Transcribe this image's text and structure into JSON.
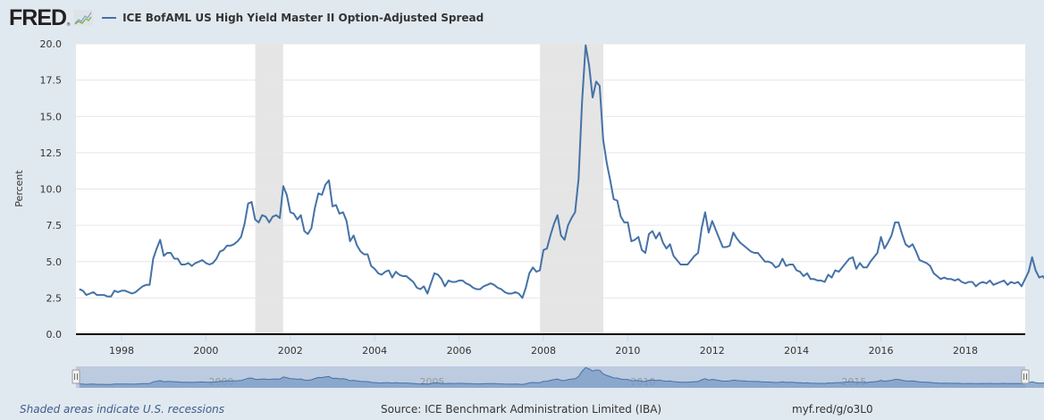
{
  "header": {
    "logo_text": "FRED",
    "logo_reg": "®",
    "series_title": "ICE BofAML US High Yield Master II Option-Adjusted Spread"
  },
  "footer": {
    "recessions_note": "Shaded areas indicate U.S. recessions",
    "source": "Source: ICE Benchmark Administration Limited (IBA)",
    "short_url": "myf.red/g/o3L0"
  },
  "colors": {
    "series": "#4572a7",
    "recession": "#e5e5e5",
    "navigator_fill": "#bccbe0",
    "navigator_area": "#7b9bc6"
  },
  "chart_data": {
    "type": "line",
    "title": "ICE BofAML US High Yield Master II Option-Adjusted Spread",
    "xlabel": "",
    "ylabel": "Percent",
    "ylim": [
      0,
      20
    ],
    "yticks": [
      "0.0",
      "2.5",
      "5.0",
      "7.5",
      "10.0",
      "12.5",
      "15.0",
      "17.5",
      "20.0"
    ],
    "ytick_values": [
      0,
      2.5,
      5,
      7.5,
      10,
      12.5,
      15,
      17.5,
      20
    ],
    "xlim": [
      1996.92,
      2019.42
    ],
    "xticks": [
      "1998",
      "2000",
      "2002",
      "2004",
      "2006",
      "2008",
      "2010",
      "2012",
      "2014",
      "2016",
      "2018"
    ],
    "xtick_values": [
      1998,
      2000,
      2002,
      2004,
      2006,
      2008,
      2010,
      2012,
      2014,
      2016,
      2018
    ],
    "grid": true,
    "legend": "top-left",
    "frequency": "monthly",
    "start": "1997-01",
    "series": [
      {
        "name": "ICE BofAML US High Yield Master II Option-Adjusted Spread",
        "values": [
          3.1,
          3.0,
          2.7,
          2.8,
          2.9,
          2.7,
          2.7,
          2.7,
          2.6,
          2.6,
          3.0,
          2.9,
          3.0,
          3.0,
          2.9,
          2.8,
          2.9,
          3.1,
          3.3,
          3.4,
          3.4,
          5.2,
          5.9,
          6.5,
          5.4,
          5.6,
          5.6,
          5.2,
          5.2,
          4.8,
          4.8,
          4.9,
          4.7,
          4.9,
          5.0,
          5.1,
          4.9,
          4.8,
          4.9,
          5.2,
          5.7,
          5.8,
          6.1,
          6.1,
          6.2,
          6.4,
          6.7,
          7.6,
          9.0,
          9.1,
          7.9,
          7.7,
          8.2,
          8.1,
          7.7,
          8.1,
          8.2,
          8.0,
          10.2,
          9.6,
          8.4,
          8.3,
          7.9,
          8.2,
          7.1,
          6.9,
          7.3,
          8.7,
          9.7,
          9.6,
          10.3,
          10.6,
          8.8,
          8.9,
          8.3,
          8.4,
          7.8,
          6.4,
          6.8,
          6.1,
          5.7,
          5.5,
          5.5,
          4.7,
          4.5,
          4.2,
          4.1,
          4.3,
          4.4,
          3.9,
          4.3,
          4.1,
          4.0,
          4.0,
          3.8,
          3.6,
          3.2,
          3.1,
          3.3,
          2.8,
          3.5,
          4.2,
          4.1,
          3.8,
          3.3,
          3.7,
          3.6,
          3.6,
          3.7,
          3.7,
          3.5,
          3.4,
          3.2,
          3.1,
          3.1,
          3.3,
          3.4,
          3.5,
          3.4,
          3.2,
          3.1,
          2.9,
          2.8,
          2.8,
          2.9,
          2.8,
          2.5,
          3.2,
          4.2,
          4.6,
          4.3,
          4.4,
          5.8,
          5.9,
          6.8,
          7.6,
          8.2,
          6.8,
          6.5,
          7.5,
          8.0,
          8.4,
          10.7,
          16.0,
          19.9,
          18.5,
          16.3,
          17.4,
          17.1,
          13.4,
          11.8,
          10.6,
          9.3,
          9.2,
          8.1,
          7.7,
          7.7,
          6.4,
          6.5,
          6.7,
          5.8,
          5.6,
          6.9,
          7.1,
          6.6,
          7.0,
          6.3,
          5.9,
          6.2,
          5.4,
          5.1,
          4.8,
          4.8,
          4.8,
          5.1,
          5.4,
          5.6,
          7.3,
          8.4,
          7.0,
          7.8,
          7.2,
          6.6,
          6.0,
          6.0,
          6.1,
          7.0,
          6.6,
          6.3,
          6.1,
          5.9,
          5.7,
          5.6,
          5.6,
          5.3,
          5.0,
          5.0,
          4.9,
          4.6,
          4.7,
          5.2,
          4.7,
          4.8,
          4.8,
          4.4,
          4.3,
          4.0,
          4.2,
          3.8,
          3.8,
          3.7,
          3.7,
          3.6,
          4.1,
          3.9,
          4.4,
          4.3,
          4.6,
          4.9,
          5.2,
          5.3,
          4.5,
          4.9,
          4.6,
          4.6,
          5.0,
          5.3,
          5.6,
          6.7,
          5.9,
          6.3,
          6.8,
          7.7,
          7.7,
          6.9,
          6.2,
          6.0,
          6.2,
          5.7,
          5.1,
          5.0,
          4.9,
          4.7,
          4.2,
          4.0,
          3.8,
          3.9,
          3.8,
          3.8,
          3.7,
          3.8,
          3.6,
          3.5,
          3.6,
          3.6,
          3.3,
          3.5,
          3.6,
          3.5,
          3.7,
          3.4,
          3.5,
          3.6,
          3.7,
          3.4,
          3.6,
          3.5,
          3.6,
          3.3,
          3.8,
          4.3,
          5.3,
          4.4,
          3.9,
          4.0,
          3.7,
          4.3
        ]
      }
    ],
    "recessions": [
      {
        "start": 2001.17,
        "end": 2001.83
      },
      {
        "start": 2007.92,
        "end": 2009.42
      }
    ],
    "navigator": {
      "labels": [
        "2000",
        "2005",
        "2010",
        "2015"
      ],
      "label_values": [
        2000,
        2005,
        2010,
        2015
      ]
    }
  }
}
